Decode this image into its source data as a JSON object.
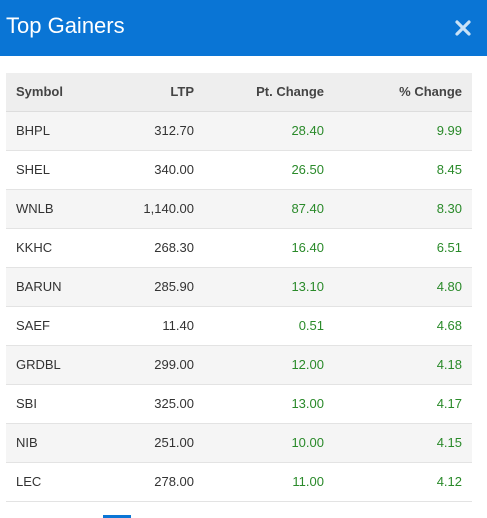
{
  "modal": {
    "title": "Top Gainers",
    "close_icon": "close-icon",
    "accent_color": "#0a75d5",
    "positive_color": "#2a8a2a"
  },
  "table": {
    "headers": {
      "symbol": "Symbol",
      "ltp": "LTP",
      "pt_change": "Pt. Change",
      "pct_change": "% Change"
    },
    "rows": [
      {
        "symbol": "BHPL",
        "ltp": "312.70",
        "pt_change": "28.40",
        "pct_change": "9.99"
      },
      {
        "symbol": "SHEL",
        "ltp": "340.00",
        "pt_change": "26.50",
        "pct_change": "8.45"
      },
      {
        "symbol": "WNLB",
        "ltp": "1,140.00",
        "pt_change": "87.40",
        "pct_change": "8.30"
      },
      {
        "symbol": "KKHC",
        "ltp": "268.30",
        "pt_change": "16.40",
        "pct_change": "6.51"
      },
      {
        "symbol": "BARUN",
        "ltp": "285.90",
        "pt_change": "13.10",
        "pct_change": "4.80"
      },
      {
        "symbol": "SAEF",
        "ltp": "11.40",
        "pt_change": "0.51",
        "pct_change": "4.68"
      },
      {
        "symbol": "GRDBL",
        "ltp": "299.00",
        "pt_change": "12.00",
        "pct_change": "4.18"
      },
      {
        "symbol": "SBI",
        "ltp": "325.00",
        "pt_change": "13.00",
        "pct_change": "4.17"
      },
      {
        "symbol": "NIB",
        "ltp": "251.00",
        "pt_change": "10.00",
        "pct_change": "4.15"
      },
      {
        "symbol": "LEC",
        "ltp": "278.00",
        "pt_change": "11.00",
        "pct_change": "4.12"
      }
    ]
  }
}
